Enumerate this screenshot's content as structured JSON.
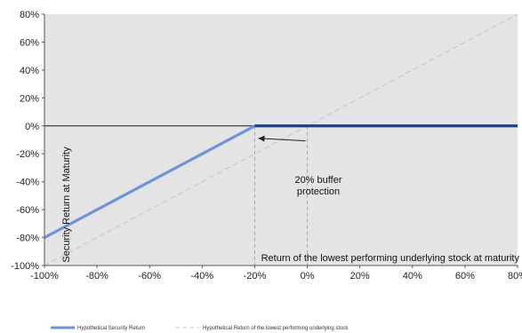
{
  "chart_data": {
    "type": "line",
    "xlabel": "Return of the lowest performing underlying stock at maturity",
    "ylabel": "Security Return at Maturity",
    "xlim": [
      -100,
      80
    ],
    "ylim": [
      -100,
      80
    ],
    "x_ticks": [
      "-100%",
      "-80%",
      "-60%",
      "-40%",
      "-20%",
      "0%",
      "20%",
      "40%",
      "60%",
      "80%"
    ],
    "y_ticks": [
      "80%",
      "60%",
      "40%",
      "20%",
      "0%",
      "-20%",
      "-40%",
      "-60%",
      "-80%",
      "-100%"
    ],
    "grid": false,
    "legend_position": "bottom",
    "background_color": "#e4e4e4",
    "series": [
      {
        "name": "Hypothetical Security Return",
        "style": "solid",
        "colors": [
          "#6b95d6",
          "#1f3f80"
        ],
        "x": [
          -100,
          -20,
          -20,
          80
        ],
        "y": [
          -80,
          0,
          0,
          0
        ]
      },
      {
        "name": "Hypothetical Return of the lowest performing underlying stock",
        "style": "dashed",
        "color": "#c8c8c8",
        "x": [
          -100,
          80
        ],
        "y": [
          -100,
          80
        ]
      }
    ],
    "annotations": [
      {
        "text_line1": "20% buffer",
        "text_line2": "protection",
        "points_to": [
          -20,
          0
        ]
      }
    ],
    "reference_lines": [
      {
        "axis": "x",
        "value": -20,
        "style": "dashed"
      },
      {
        "axis": "x",
        "value": 0,
        "style": "dashed"
      },
      {
        "axis": "y",
        "value": 0,
        "style": "solid"
      }
    ]
  }
}
